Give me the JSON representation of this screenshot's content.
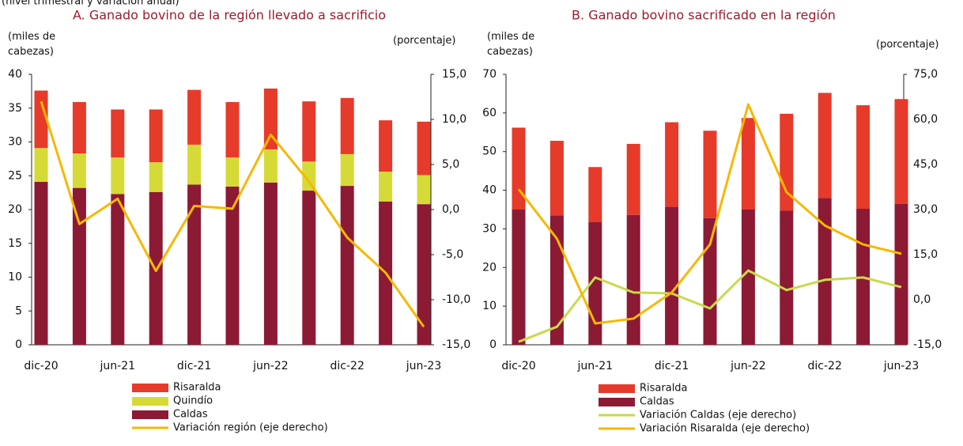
{
  "subtitle": "(nivel trimestral y variación anual)",
  "chart_data": [
    {
      "type": "bar",
      "stacked": true,
      "title": "A. Ganado bovino de la región llevado a sacrificio",
      "ylabel": "(miles de cabezas)",
      "y2label": "(porcentaje)",
      "categories": [
        "dic-20",
        null,
        "jun-21",
        null,
        "dic-21",
        null,
        "jun-22",
        null,
        "dic-22",
        null,
        "jun-23"
      ],
      "series": [
        {
          "name": "Risaralda",
          "color": "#e63a2a",
          "values": [
            8.5,
            7.6,
            7.1,
            7.8,
            8.1,
            8.2,
            9.0,
            8.9,
            8.3,
            7.6,
            7.9
          ]
        },
        {
          "name": "Quindío",
          "color": "#d6da36",
          "values": [
            5.0,
            5.1,
            5.4,
            4.4,
            5.9,
            4.3,
            4.9,
            4.3,
            4.7,
            4.4,
            4.3
          ]
        },
        {
          "name": "Caldas",
          "color": "#8c1a34",
          "values": [
            24.1,
            23.2,
            22.3,
            22.6,
            23.7,
            23.4,
            24.0,
            22.8,
            23.5,
            21.2,
            20.8
          ]
        },
        {
          "name": "Variación región (eje derecho)",
          "type": "line",
          "axis": "y2",
          "color": "#f6b800",
          "values": [
            12.0,
            -1.6,
            1.2,
            -6.8,
            0.4,
            0.1,
            8.3,
            3.1,
            -3.1,
            -7.0,
            -13.0
          ]
        }
      ],
      "ylim": [
        0,
        40
      ],
      "yticks": [
        0,
        5,
        10,
        15,
        20,
        25,
        30,
        35,
        40
      ],
      "y2lim": [
        -15,
        15
      ],
      "y2ticks": [
        {
          "value": -15,
          "label": "-15,0"
        },
        {
          "value": -10,
          "label": "-10,0"
        },
        {
          "value": -5,
          "label": "-5,0"
        },
        {
          "value": 0,
          "label": "0,0"
        },
        {
          "value": 5,
          "label": "5,0"
        },
        {
          "value": 10,
          "label": "10,0"
        },
        {
          "value": 15,
          "label": "15,0"
        }
      ]
    },
    {
      "type": "bar",
      "stacked": true,
      "title": "B. Ganado bovino sacrificado en la región",
      "ylabel": "(miles de cabezas)",
      "y2label": "(porcentaje)",
      "categories": [
        "dic-20",
        null,
        "jun-21",
        null,
        "dic-21",
        null,
        "jun-22",
        null,
        "dic-22",
        null,
        "jun-23"
      ],
      "series": [
        {
          "name": "Risaralda",
          "color": "#e63a2a",
          "values": [
            21.2,
            19.3,
            14.2,
            18.4,
            21.9,
            22.6,
            23.7,
            25.1,
            27.2,
            26.8,
            27.1
          ]
        },
        {
          "name": "Caldas",
          "color": "#8c1a34",
          "values": [
            35.0,
            33.5,
            31.8,
            33.6,
            35.7,
            32.8,
            35.0,
            34.7,
            38.0,
            35.2,
            36.5
          ]
        },
        {
          "name": "Variación Caldas (eje derecho)",
          "type": "line",
          "axis": "y2",
          "color": "#c9da4c",
          "values": [
            -14.0,
            -9.0,
            7.4,
            2.4,
            2.1,
            -2.9,
            9.7,
            3.2,
            6.6,
            7.4,
            4.2
          ]
        },
        {
          "name": "Variación Risaralda (eje derecho)",
          "type": "line",
          "axis": "y2",
          "color": "#f6b800",
          "values": [
            36.8,
            20.3,
            -7.9,
            -6.3,
            2.4,
            18.4,
            65.0,
            35.8,
            24.7,
            18.4,
            15.3
          ]
        }
      ],
      "ylim": [
        0,
        70
      ],
      "yticks": [
        0,
        10,
        20,
        30,
        40,
        50,
        60,
        70
      ],
      "y2lim": [
        -15,
        75
      ],
      "y2ticks": [
        {
          "value": -15,
          "label": "-15,0"
        },
        {
          "value": 0,
          "label": "0,0"
        },
        {
          "value": 15,
          "label": "15,0"
        },
        {
          "value": 30,
          "label": "30,0"
        },
        {
          "value": 45,
          "label": "45,0"
        },
        {
          "value": 60,
          "label": "60,0"
        },
        {
          "value": 75,
          "label": "75,0"
        }
      ]
    }
  ]
}
